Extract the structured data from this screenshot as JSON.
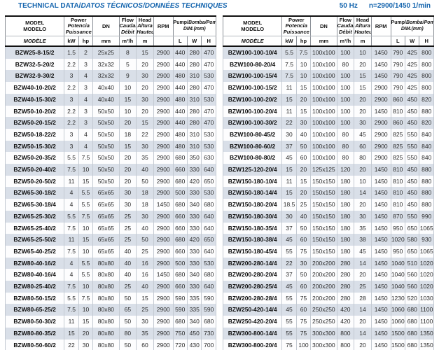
{
  "header": {
    "title_main": "TECHNICAL DATA/",
    "title_rest": "DATOS TÉCNICOS/DONNÉES TECHNIQUES",
    "frequency": "50 Hz",
    "speed": "n=2900/1450 1/min"
  },
  "colors": {
    "accent_blue": "#1565ae",
    "row_alt": "#d9dfe8"
  },
  "columns": {
    "model": [
      "MODEL",
      "MODELO",
      "MODÈLE"
    ],
    "power": [
      "Power",
      "Potencia",
      "Puissance"
    ],
    "dn": "DN",
    "flow": [
      "Flow",
      "Caudal",
      "Débit"
    ],
    "head": [
      "Head",
      "Altura",
      "Hauteur"
    ],
    "rpm": "RPM",
    "dim": [
      "Pump/",
      "Bomba/Pompe",
      "DIM.(mm)"
    ],
    "units": {
      "kw": "kW",
      "hp": "hp",
      "dn": "mm",
      "flow": "m³/h",
      "head": "m",
      "l": "L",
      "w": "W",
      "h": "H"
    }
  },
  "tables": [
    {
      "rows": [
        [
          "BZW25-8-15/2",
          "1.5",
          "2",
          "25x25",
          "8",
          "15",
          "2900",
          "440",
          "280",
          "470"
        ],
        [
          "BZW32-5-20/2",
          "2.2",
          "3",
          "32x32",
          "5",
          "20",
          "2900",
          "440",
          "280",
          "470"
        ],
        [
          "BZW32-9-30/2",
          "3",
          "4",
          "32x32",
          "9",
          "30",
          "2900",
          "480",
          "310",
          "530"
        ],
        [
          "BZW40-10-20/2",
          "2.2",
          "3",
          "40x40",
          "10",
          "20",
          "2900",
          "440",
          "280",
          "470"
        ],
        [
          "BZW40-15-30/2",
          "3",
          "4",
          "40x40",
          "15",
          "30",
          "2900",
          "480",
          "310",
          "530"
        ],
        [
          "BZW50-10-20/2",
          "2.2",
          "3",
          "50x50",
          "10",
          "20",
          "2900",
          "440",
          "280",
          "470"
        ],
        [
          "BZW50-20-15/2",
          "2.2",
          "3",
          "50x50",
          "20",
          "15",
          "2900",
          "440",
          "280",
          "470"
        ],
        [
          "BZW50-18-22/2",
          "3",
          "4",
          "50x50",
          "18",
          "22",
          "2900",
          "480",
          "310",
          "530"
        ],
        [
          "BZW50-15-30/2",
          "3",
          "4",
          "50x50",
          "15",
          "30",
          "2900",
          "480",
          "310",
          "530"
        ],
        [
          "BZW50-20-35/2",
          "5.5",
          "7.5",
          "50x50",
          "20",
          "35",
          "2900",
          "680",
          "350",
          "630"
        ],
        [
          "BZW50-20-40/2",
          "7.5",
          "10",
          "50x50",
          "20",
          "40",
          "2900",
          "660",
          "330",
          "640"
        ],
        [
          "BZW50-20-50/2",
          "11",
          "15",
          "50x50",
          "20",
          "50",
          "2900",
          "680",
          "420",
          "650"
        ],
        [
          "BZW65-30-18/2",
          "4",
          "5.5",
          "65x65",
          "30",
          "18",
          "2900",
          "500",
          "330",
          "530"
        ],
        [
          "BZW65-30-18/4",
          "4",
          "5.5",
          "65x65",
          "30",
          "18",
          "1450",
          "680",
          "340",
          "680"
        ],
        [
          "BZW65-25-30/2",
          "5.5",
          "7.5",
          "65x65",
          "25",
          "30",
          "2900",
          "660",
          "330",
          "640"
        ],
        [
          "BZW65-25-40/2",
          "7.5",
          "10",
          "65x65",
          "25",
          "40",
          "2900",
          "660",
          "330",
          "640"
        ],
        [
          "BZW65-25-50/2",
          "11",
          "15",
          "65x65",
          "25",
          "50",
          "2900",
          "680",
          "420",
          "650"
        ],
        [
          "BZW65-40-25/2",
          "7.5",
          "10",
          "65x65",
          "40",
          "25",
          "2900",
          "660",
          "330",
          "640"
        ],
        [
          "BZW80-40-16/2",
          "4",
          "5.5",
          "80x80",
          "40",
          "16",
          "2900",
          "500",
          "330",
          "530"
        ],
        [
          "BZW80-40-16/4",
          "4",
          "5.5",
          "80x80",
          "40",
          "16",
          "1450",
          "680",
          "340",
          "680"
        ],
        [
          "BZW80-25-40/2",
          "7.5",
          "10",
          "80x80",
          "25",
          "40",
          "2900",
          "660",
          "330",
          "640"
        ],
        [
          "BZW80-50-15/2",
          "5.5",
          "7.5",
          "80x80",
          "50",
          "15",
          "2900",
          "590",
          "335",
          "590"
        ],
        [
          "BZW80-65-25/2",
          "7.5",
          "10",
          "80x80",
          "65",
          "25",
          "2900",
          "590",
          "335",
          "590"
        ],
        [
          "BZW80-50-30/2",
          "11",
          "15",
          "80x80",
          "50",
          "30",
          "2900",
          "680",
          "340",
          "680"
        ],
        [
          "BZW80-80-35/2",
          "15",
          "20",
          "80x80",
          "80",
          "35",
          "2900",
          "750",
          "450",
          "730"
        ],
        [
          "BZW80-50-60/2",
          "22",
          "30",
          "80x80",
          "50",
          "60",
          "2900",
          "720",
          "430",
          "700"
        ]
      ]
    },
    {
      "rows": [
        [
          "BZW100-100-10/4",
          "5.5",
          "7.5",
          "100x100",
          "100",
          "10",
          "1450",
          "790",
          "425",
          "800"
        ],
        [
          "BZW100-80-20/4",
          "7.5",
          "10",
          "100x100",
          "80",
          "20",
          "1450",
          "790",
          "425",
          "800"
        ],
        [
          "BZW100-100-15/4",
          "7.5",
          "10",
          "100x100",
          "100",
          "15",
          "1450",
          "790",
          "425",
          "800"
        ],
        [
          "BZW100-100-15/2",
          "11",
          "15",
          "100x100",
          "100",
          "15",
          "2900",
          "790",
          "425",
          "800"
        ],
        [
          "BZW100-100-20/2",
          "15",
          "20",
          "100x100",
          "100",
          "20",
          "2900",
          "860",
          "450",
          "820"
        ],
        [
          "BZW100-100-20/4",
          "11",
          "15",
          "100x100",
          "100",
          "20",
          "1450",
          "810",
          "450",
          "880"
        ],
        [
          "BZW100-100-30/2",
          "22",
          "30",
          "100x100",
          "100",
          "30",
          "2900",
          "860",
          "450",
          "820"
        ],
        [
          "BZW100-80-45/2",
          "30",
          "40",
          "100x100",
          "80",
          "45",
          "2900",
          "825",
          "550",
          "840"
        ],
        [
          "BZW100-80-60/2",
          "37",
          "50",
          "100x100",
          "80",
          "60",
          "2900",
          "825",
          "550",
          "840"
        ],
        [
          "BZW100-80-80/2",
          "45",
          "60",
          "100x100",
          "80",
          "80",
          "2900",
          "825",
          "550",
          "840"
        ],
        [
          "BZW125-120-20/4",
          "15",
          "20",
          "125x125",
          "120",
          "20",
          "1450",
          "810",
          "450",
          "880"
        ],
        [
          "BZW150-180-10/4",
          "11",
          "15",
          "150x150",
          "180",
          "10",
          "1450",
          "810",
          "450",
          "880"
        ],
        [
          "BZW150-180-14/4",
          "15",
          "20",
          "150x150",
          "180",
          "14",
          "1450",
          "810",
          "450",
          "880"
        ],
        [
          "BZW150-180-20/4",
          "18.5",
          "25",
          "150x150",
          "180",
          "20",
          "1450",
          "810",
          "450",
          "880"
        ],
        [
          "BZW150-180-30/4",
          "30",
          "40",
          "150x150",
          "180",
          "30",
          "1450",
          "870",
          "550",
          "990"
        ],
        [
          "BZW150-180-35/4",
          "37",
          "50",
          "150x150",
          "180",
          "35",
          "1450",
          "950",
          "650",
          "1065"
        ],
        [
          "BZW150-180-38/4",
          "45",
          "60",
          "150x150",
          "180",
          "38",
          "1450",
          "1020",
          "580",
          "930"
        ],
        [
          "BZW150-180-45/4",
          "55",
          "75",
          "150x150",
          "180",
          "45",
          "1450",
          "950",
          "650",
          "1065"
        ],
        [
          "BZW200-280-14/4",
          "22",
          "30",
          "200x200",
          "280",
          "14",
          "1450",
          "1040",
          "510",
          "1020"
        ],
        [
          "BZW200-280-20/4",
          "37",
          "50",
          "200x200",
          "280",
          "20",
          "1450",
          "1040",
          "560",
          "1020"
        ],
        [
          "BZW200-280-25/4",
          "45",
          "60",
          "200x200",
          "280",
          "25",
          "1450",
          "1040",
          "560",
          "1020"
        ],
        [
          "BZW200-280-28/4",
          "55",
          "75",
          "200x200",
          "280",
          "28",
          "1450",
          "1230",
          "520",
          "1030"
        ],
        [
          "BZW250-420-14/4",
          "45",
          "60",
          "250x250",
          "420",
          "14",
          "1450",
          "1060",
          "680",
          "1100"
        ],
        [
          "BZW250-420-20/4",
          "55",
          "75",
          "250x250",
          "420",
          "20",
          "1450",
          "1060",
          "680",
          "1100"
        ],
        [
          "BZW300-800-14/4",
          "55",
          "75",
          "300x300",
          "800",
          "14",
          "1450",
          "1500",
          "680",
          "1350"
        ],
        [
          "BZW300-800-20/4",
          "75",
          "100",
          "300x300",
          "800",
          "20",
          "1450",
          "1500",
          "680",
          "1350"
        ]
      ]
    }
  ]
}
